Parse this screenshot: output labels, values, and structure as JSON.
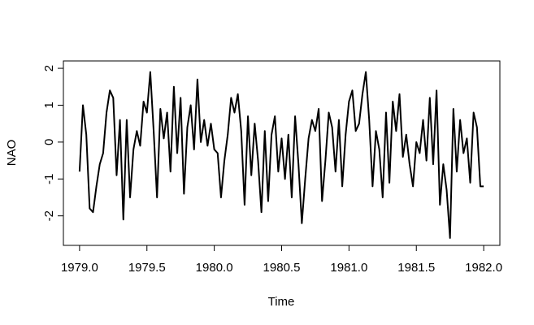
{
  "chart_data": {
    "type": "line",
    "xlabel": "Time",
    "ylabel": "NAO",
    "x": [
      1979.0,
      1979.025,
      1979.05,
      1979.075,
      1979.1,
      1979.125,
      1979.15,
      1979.175,
      1979.2,
      1979.225,
      1979.25,
      1979.275,
      1979.3,
      1979.325,
      1979.35,
      1979.375,
      1979.4,
      1979.425,
      1979.45,
      1979.475,
      1979.5,
      1979.525,
      1979.55,
      1979.575,
      1979.6,
      1979.625,
      1979.65,
      1979.675,
      1979.7,
      1979.725,
      1979.75,
      1979.775,
      1979.8,
      1979.825,
      1979.85,
      1979.875,
      1979.9,
      1979.925,
      1979.95,
      1979.975,
      1980.0,
      1980.025,
      1980.05,
      1980.075,
      1980.1,
      1980.125,
      1980.15,
      1980.175,
      1980.2,
      1980.225,
      1980.25,
      1980.275,
      1980.3,
      1980.325,
      1980.35,
      1980.375,
      1980.4,
      1980.425,
      1980.45,
      1980.475,
      1980.5,
      1980.525,
      1980.55,
      1980.575,
      1980.6,
      1980.625,
      1980.65,
      1980.675,
      1980.7,
      1980.725,
      1980.75,
      1980.775,
      1980.8,
      1980.825,
      1980.85,
      1980.875,
      1980.9,
      1980.925,
      1980.95,
      1980.975,
      1981.0,
      1981.025,
      1981.05,
      1981.075,
      1981.1,
      1981.125,
      1981.15,
      1981.175,
      1981.2,
      1981.225,
      1981.25,
      1981.275,
      1981.3,
      1981.325,
      1981.35,
      1981.375,
      1981.4,
      1981.425,
      1981.45,
      1981.475,
      1981.5,
      1981.525,
      1981.55,
      1981.575,
      1981.6,
      1981.625,
      1981.65,
      1981.675,
      1981.7,
      1981.725,
      1981.75,
      1981.775,
      1981.8,
      1981.825,
      1981.85,
      1981.875,
      1981.9,
      1981.925,
      1981.95,
      1981.975,
      1982.0
    ],
    "series": [
      {
        "color": "#000000",
        "values": [
          -0.8,
          1.0,
          0.2,
          -1.8,
          -1.9,
          -1.2,
          -0.6,
          -0.3,
          0.8,
          1.4,
          1.2,
          -0.9,
          0.6,
          -2.1,
          0.6,
          -1.5,
          -0.2,
          0.3,
          -0.1,
          1.1,
          0.8,
          1.9,
          0.3,
          -1.5,
          0.9,
          0.1,
          0.8,
          -0.8,
          1.5,
          -0.3,
          1.2,
          -1.4,
          0.4,
          1.0,
          -0.2,
          1.7,
          0.0,
          0.6,
          -0.1,
          0.5,
          -0.2,
          -0.3,
          -1.5,
          -0.5,
          0.2,
          1.2,
          0.8,
          1.3,
          0.3,
          -1.7,
          0.7,
          -0.9,
          0.5,
          -0.5,
          -1.9,
          0.3,
          -1.6,
          0.2,
          0.7,
          -0.8,
          0.1,
          -1.0,
          0.2,
          -1.5,
          0.7,
          -0.6,
          -2.2,
          -1.0,
          0.1,
          0.6,
          0.3,
          0.9,
          -1.6,
          -0.5,
          0.8,
          0.4,
          -0.8,
          0.6,
          -1.2,
          0.2,
          1.1,
          1.4,
          0.3,
          0.5,
          1.3,
          1.9,
          0.6,
          -1.2,
          0.3,
          -0.2,
          -1.5,
          0.8,
          -1.1,
          1.1,
          0.3,
          1.3,
          -0.4,
          0.2,
          -0.6,
          -1.2,
          0.0,
          -0.3,
          0.6,
          -0.5,
          1.2,
          -0.6,
          1.4,
          -1.7,
          -0.6,
          -1.3,
          -2.6,
          0.9,
          -0.8,
          0.6,
          -0.3,
          0.1,
          -1.1,
          0.8,
          0.4,
          -1.2,
          -1.2
        ]
      }
    ],
    "xlim": [
      1978.88,
      1982.12
    ],
    "xticks": [
      {
        "value": 1979,
        "label": "1979.0"
      },
      {
        "value": 1979.5,
        "label": "1979.5"
      },
      {
        "value": 1980,
        "label": "1980.0"
      },
      {
        "value": 1980.5,
        "label": "1980.5"
      },
      {
        "value": 1981,
        "label": "1981.0"
      },
      {
        "value": 1981.5,
        "label": "1981.5"
      },
      {
        "value": 1982,
        "label": "1982.0"
      }
    ],
    "ylim": [
      -2.8,
      2.2
    ],
    "yticks": [
      -2,
      -1,
      0,
      1,
      2
    ]
  }
}
